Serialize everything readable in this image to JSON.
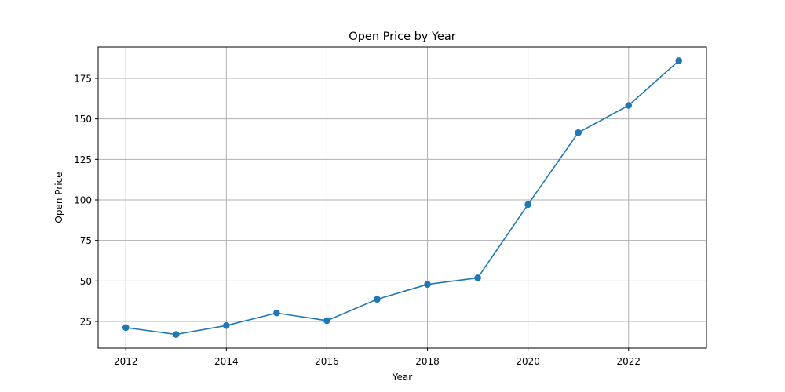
{
  "chart_data": {
    "type": "line",
    "title": "Open Price by Year",
    "xlabel": "Year",
    "ylabel": "Open Price",
    "x": [
      2012,
      2013,
      2014,
      2015,
      2016,
      2017,
      2018,
      2019,
      2020,
      2021,
      2022,
      2023
    ],
    "series": [
      {
        "values": [
          21.2,
          17.0,
          22.5,
          30.2,
          25.5,
          38.7,
          47.9,
          51.9,
          97.2,
          141.5,
          158.3,
          185.9
        ],
        "color": "#1f77b4",
        "marker": "circle"
      }
    ],
    "xticks": [
      "2012",
      "2014",
      "2016",
      "2018",
      "2020",
      "2022"
    ],
    "yticks": [
      "25",
      "50",
      "75",
      "100",
      "125",
      "150",
      "175"
    ],
    "xlim": [
      2011.45,
      2023.55
    ],
    "ylim": [
      8.55,
      194.35
    ],
    "grid": true,
    "legend": "none"
  }
}
